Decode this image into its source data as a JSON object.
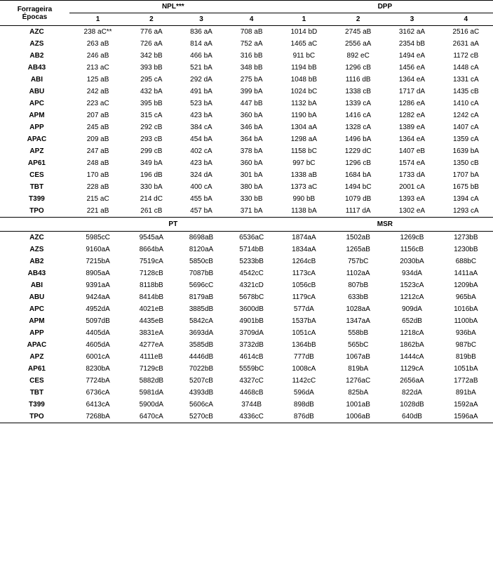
{
  "header": {
    "forrageira": "Forrageira",
    "epocas": "Épocas",
    "npl": "NPL***",
    "dpp": "DPP",
    "pt": "PT",
    "msr": "MSR",
    "c1": "1",
    "c2": "2",
    "c3": "3",
    "c4": "4"
  },
  "sec1": [
    {
      "f": "AZC",
      "n": [
        "238 aC**",
        "776 aA",
        "836 aA",
        "708 aB"
      ],
      "d": [
        "1014 bD",
        "2745 aB",
        "3162 aA",
        "2516 aC"
      ]
    },
    {
      "f": "AZS",
      "n": [
        "263 aB",
        "726 aA",
        "814 aA",
        "752 aA"
      ],
      "d": [
        "1465 aC",
        "2556 aA",
        "2354 bB",
        "2631 aA"
      ]
    },
    {
      "f": "AB2",
      "n": [
        "246 aB",
        "342 bB",
        "466 bA",
        "316 bB"
      ],
      "d": [
        "911 bC",
        "892 eC",
        "1494 eA",
        "1172 cB"
      ]
    },
    {
      "f": "AB43",
      "n": [
        "213 aC",
        "393 bB",
        "521 bA",
        "348 bB"
      ],
      "d": [
        "1194 bB",
        "1296 cB",
        "1456 eA",
        "1448 cA"
      ]
    },
    {
      "f": "ABI",
      "n": [
        "125 aB",
        "295 cA",
        "292 dA",
        "275 bA"
      ],
      "d": [
        "1048 bB",
        "1116 dB",
        "1364 eA",
        "1331 cA"
      ]
    },
    {
      "f": "ABU",
      "n": [
        "242 aB",
        "432 bA",
        "491 bA",
        "399 bA"
      ],
      "d": [
        "1024 bC",
        "1338 cB",
        "1717 dA",
        "1435 cB"
      ]
    },
    {
      "f": "APC",
      "n": [
        "223 aC",
        "395 bB",
        "523 bA",
        "447 bB"
      ],
      "d": [
        "1132 bA",
        "1339 cA",
        "1286 eA",
        "1410 cA"
      ]
    },
    {
      "f": "APM",
      "n": [
        "207 aB",
        "315 cA",
        "423 bA",
        "360 bA"
      ],
      "d": [
        "1190 bA",
        "1416 cA",
        "1282 eA",
        "1242 cA"
      ]
    },
    {
      "f": "APP",
      "n": [
        "245 aB",
        "292 cB",
        "384 cA",
        "346 bA"
      ],
      "d": [
        "1304 aA",
        "1328 cA",
        "1389 eA",
        "1407 cA"
      ]
    },
    {
      "f": "APAC",
      "n": [
        "209 aB",
        "293 cB",
        "454 bA",
        "364 bA"
      ],
      "d": [
        "1298 aA",
        "1496 bA",
        "1364 eA",
        "1359 cA"
      ]
    },
    {
      "f": "APZ",
      "n": [
        "247 aB",
        "299 cB",
        "402 cA",
        "378 bA"
      ],
      "d": [
        "1158 bC",
        "1229 dC",
        "1407 eB",
        "1639 bA"
      ]
    },
    {
      "f": "AP61",
      "n": [
        "248 aB",
        "349 bA",
        "423  bA",
        "360 bA"
      ],
      "d": [
        "997 bC",
        "1296 cB",
        "1574 eA",
        "1350 cB"
      ]
    },
    {
      "f": "CES",
      "n": [
        "170 aB",
        "196 dB",
        "324 dA",
        "301 bA"
      ],
      "d": [
        "1338 aB",
        "1684 bA",
        "1733 dA",
        "1707 bA"
      ]
    },
    {
      "f": "TBT",
      "n": [
        "228 aB",
        "330 bA",
        "400 cA",
        "380 bA"
      ],
      "d": [
        "1373 aC",
        "1494 bC",
        "2001 cA",
        "1675 bB"
      ]
    },
    {
      "f": "T399",
      "n": [
        "215 aC",
        "214 dC",
        "455 bA",
        "330 bB"
      ],
      "d": [
        "990 bB",
        "1079 dB",
        "1393 eA",
        "1394 cA"
      ]
    },
    {
      "f": "TPO",
      "n": [
        "221 aB",
        "261 cB",
        "457 bA",
        "371 bA"
      ],
      "d": [
        "1138 bA",
        "1117 dA",
        "1302 eA",
        "1293 cA"
      ]
    }
  ],
  "sec2": [
    {
      "f": "AZC",
      "p": [
        "5985cC",
        "9545aA",
        "8698aB",
        "6536aC"
      ],
      "m": [
        "1874aA",
        "1502aB",
        "1269cB",
        "1273bB"
      ]
    },
    {
      "f": "AZS",
      "p": [
        "9160aA",
        "8664bA",
        "8120aA",
        "5714bB"
      ],
      "m": [
        "1834aA",
        "1265aB",
        "1156cB",
        "1230bB"
      ]
    },
    {
      "f": "AB2",
      "p": [
        "7215bA",
        "7519cA",
        "5850cB",
        "5233bB"
      ],
      "m": [
        "1264cB",
        "757bC",
        "2030bA",
        "688bC"
      ]
    },
    {
      "f": "AB43",
      "p": [
        "8905aA",
        "7128cB",
        "7087bB",
        "4542cC"
      ],
      "m": [
        "1173cA",
        "1102aA",
        "934dA",
        "1411aA"
      ]
    },
    {
      "f": "ABI",
      "p": [
        "9391aA",
        "8118bB",
        "5696cC",
        "4321cD"
      ],
      "m": [
        "1056cB",
        "807bB",
        "1523cA",
        "1209bA"
      ]
    },
    {
      "f": "ABU",
      "p": [
        "9424aA",
        "8414bB",
        "8179aB",
        "5678bC"
      ],
      "m": [
        "1179cA",
        "633bB",
        "1212cA",
        "965bA"
      ]
    },
    {
      "f": "APC",
      "p": [
        "4952dA",
        "4021eB",
        "3885dB",
        "3600dB"
      ],
      "m": [
        "577dA",
        "1028aA",
        "909dA",
        "1016bA"
      ]
    },
    {
      "f": "APM",
      "p": [
        "5097dB",
        "4435eB",
        "5842cA",
        "4901bB"
      ],
      "m": [
        "1537bA",
        "1347aA",
        "652dB",
        "1100bA"
      ]
    },
    {
      "f": "APP",
      "p": [
        "4405dA",
        "3831eA",
        "3693dA",
        "3709dA"
      ],
      "m": [
        "1051cA",
        "558bB",
        "1218cA",
        "936bA"
      ]
    },
    {
      "f": "APAC",
      "p": [
        "4605dA",
        "4277eA",
        "3585dB",
        "3732dB"
      ],
      "m": [
        "1364bB",
        "565bC",
        "1862bA",
        "987bC"
      ]
    },
    {
      "f": "APZ",
      "p": [
        "6001cA",
        "4111eB",
        "4446dB",
        "4614cB"
      ],
      "m": [
        "777dB",
        "1067aB",
        "1444cA",
        "819bB"
      ]
    },
    {
      "f": "AP61",
      "p": [
        "8230bA",
        "7129cB",
        "7022bB",
        "5559bC"
      ],
      "m": [
        "1008cA",
        "819bA",
        "1129cA",
        "1051bA"
      ]
    },
    {
      "f": "CES",
      "p": [
        "7724bA",
        "5882dB",
        "5207cB",
        "4327cC"
      ],
      "m": [
        "1142cC",
        "1276aC",
        "2656aA",
        "1772aB"
      ]
    },
    {
      "f": "TBT",
      "p": [
        "6736cA",
        "5981dA",
        "4393dB",
        "4468cB"
      ],
      "m": [
        "596dA",
        "825bA",
        "822dA",
        "891bA"
      ]
    },
    {
      "f": "T399",
      "p": [
        "6413cA",
        "5900dA",
        "5606cA",
        "3744B"
      ],
      "m": [
        "898dB",
        "1001aB",
        "1028dB",
        "1592aA"
      ]
    },
    {
      "f": "TPO",
      "p": [
        "7268bA",
        "6470cA",
        "5270cB",
        "4336cC"
      ],
      "m": [
        "876dB",
        "1006aB",
        "640dB",
        "1596aA"
      ]
    }
  ]
}
